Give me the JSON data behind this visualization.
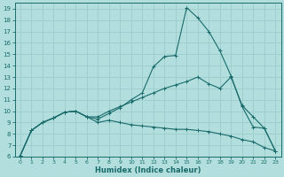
{
  "xlabel": "Humidex (Indice chaleur)",
  "background_color": "#b2dede",
  "grid_color": "#9ecece",
  "line_color": "#1a6b6b",
  "xlim": [
    -0.5,
    23.5
  ],
  "ylim": [
    6,
    19.5
  ],
  "xticks": [
    0,
    1,
    2,
    3,
    4,
    5,
    6,
    7,
    8,
    9,
    10,
    11,
    12,
    13,
    14,
    15,
    16,
    17,
    18,
    19,
    20,
    21,
    22,
    23
  ],
  "yticks": [
    6,
    7,
    8,
    9,
    10,
    11,
    12,
    13,
    14,
    15,
    16,
    17,
    18,
    19
  ],
  "line1_x": [
    0,
    1,
    2,
    3,
    4,
    5,
    6,
    7,
    8,
    9,
    10,
    11,
    12,
    13,
    14,
    15,
    16,
    17,
    18,
    19,
    20,
    21,
    22,
    23
  ],
  "line1_y": [
    6.1,
    8.3,
    9.0,
    9.4,
    9.9,
    10.0,
    9.5,
    9.3,
    9.8,
    10.3,
    11.0,
    11.6,
    13.9,
    14.8,
    14.9,
    19.1,
    18.2,
    17.0,
    15.3,
    13.1,
    10.4,
    8.6,
    8.5,
    6.5
  ],
  "line2_x": [
    0,
    1,
    2,
    3,
    4,
    5,
    6,
    7,
    8,
    9,
    10,
    11,
    12,
    13,
    14,
    15,
    16,
    17,
    18,
    19,
    20,
    21,
    22,
    23
  ],
  "line2_y": [
    6.1,
    8.3,
    9.0,
    9.4,
    9.9,
    10.0,
    9.5,
    9.5,
    10.0,
    10.4,
    10.8,
    11.2,
    11.6,
    12.0,
    12.3,
    12.6,
    13.0,
    12.4,
    12.0,
    13.0,
    10.5,
    9.5,
    8.5,
    6.5
  ],
  "line3_x": [
    0,
    1,
    2,
    3,
    4,
    5,
    6,
    7,
    8,
    9,
    10,
    11,
    12,
    13,
    14,
    15,
    16,
    17,
    18,
    19,
    20,
    21,
    22,
    23
  ],
  "line3_y": [
    6.1,
    8.3,
    9.0,
    9.4,
    9.9,
    10.0,
    9.5,
    9.0,
    9.2,
    9.0,
    8.8,
    8.7,
    8.6,
    8.5,
    8.4,
    8.4,
    8.3,
    8.2,
    8.0,
    7.8,
    7.5,
    7.3,
    6.8,
    6.5
  ]
}
